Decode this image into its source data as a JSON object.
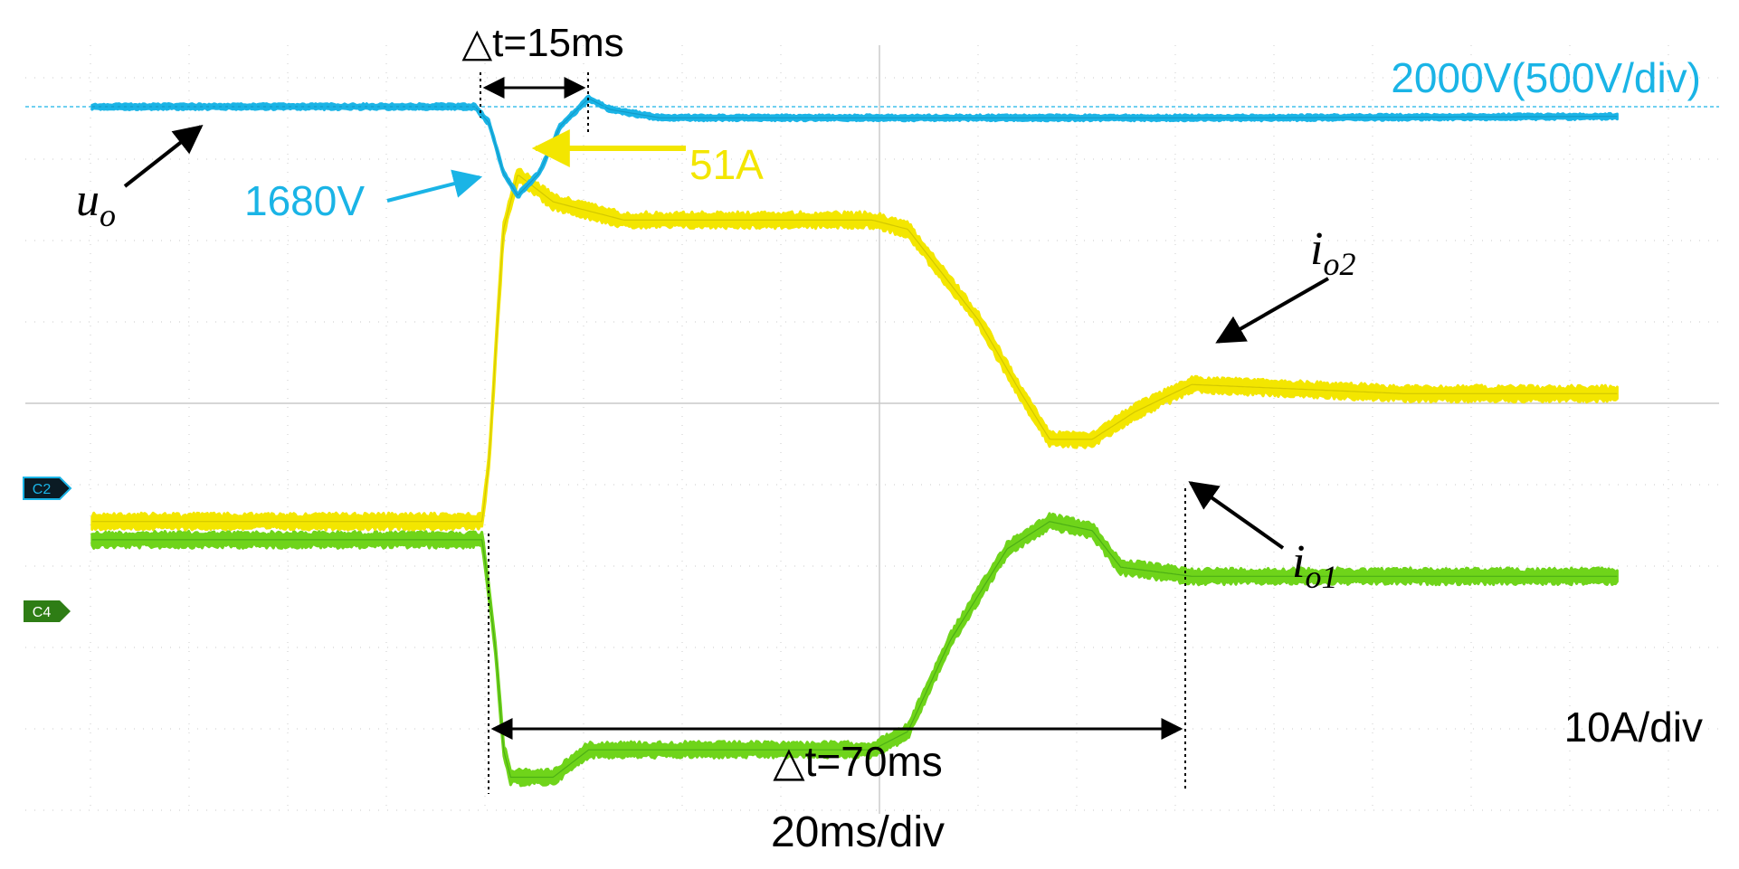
{
  "chart_data": {
    "type": "line",
    "title": "",
    "xlabel": "",
    "ylabel": "",
    "x_unit": "ms",
    "grid": true,
    "timebase_label": "20ms/div",
    "current_scale_label": "10A/div",
    "voltage_scale_label": "2000V(500V/div)",
    "channel_markers": [
      "C2",
      "C4"
    ],
    "annotations": {
      "dt_top": "△t=15ms",
      "dt_bottom": "△t=70ms",
      "v_min": "1680V",
      "i_peak": "51A"
    },
    "series": [
      {
        "name": "u_o",
        "label_main": "u",
        "label_sub": "o",
        "color": "#1ab4e6",
        "points": [
          [
            -55,
            2000
          ],
          [
            -1,
            2000
          ],
          [
            1,
            1940
          ],
          [
            3,
            1760
          ],
          [
            5,
            1680
          ],
          [
            8,
            1760
          ],
          [
            11,
            1930
          ],
          [
            15,
            2030
          ],
          [
            18,
            1990
          ],
          [
            25,
            1960
          ],
          [
            60,
            1960
          ],
          [
            110,
            1960
          ],
          [
            160,
            1965
          ]
        ]
      },
      {
        "name": "i_o2",
        "label_main": "i",
        "label_sub": "o2",
        "color": "#f3e600",
        "points": [
          [
            -55,
            13
          ],
          [
            0,
            13
          ],
          [
            1,
            20
          ],
          [
            2,
            33
          ],
          [
            3,
            45
          ],
          [
            5,
            51
          ],
          [
            10,
            48
          ],
          [
            20,
            46
          ],
          [
            55,
            46
          ],
          [
            60,
            45
          ],
          [
            70,
            35
          ],
          [
            76,
            27
          ],
          [
            80,
            22
          ],
          [
            86,
            22
          ],
          [
            92,
            25
          ],
          [
            100,
            28
          ],
          [
            130,
            27
          ],
          [
            160,
            27
          ]
        ]
      },
      {
        "name": "i_o1",
        "label_main": "i",
        "label_sub": "o1",
        "color": "#6fd41a",
        "points": [
          [
            -55,
            11
          ],
          [
            0,
            11
          ],
          [
            1,
            5
          ],
          [
            2,
            -2
          ],
          [
            3,
            -12
          ],
          [
            4,
            -15
          ],
          [
            10,
            -15
          ],
          [
            15,
            -12
          ],
          [
            20,
            -12
          ],
          [
            55,
            -12
          ],
          [
            60,
            -10
          ],
          [
            66,
            0
          ],
          [
            74,
            10
          ],
          [
            80,
            13
          ],
          [
            86,
            12
          ],
          [
            90,
            8
          ],
          [
            100,
            7
          ],
          [
            130,
            7
          ],
          [
            160,
            7
          ]
        ]
      }
    ]
  }
}
